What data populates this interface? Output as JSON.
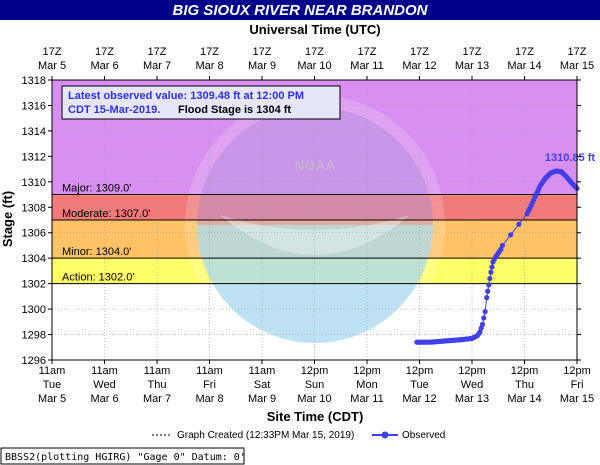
{
  "colors": {
    "title_bar": "#00008b",
    "observed": "#4040e6",
    "band_record": "#d98ff2",
    "band_major": "#c86ee0",
    "band_moderate": "#f27a7a",
    "band_minor": "#ffc266",
    "band_action": "#ffff66"
  },
  "chart_data": {
    "type": "line",
    "title": "BIG SIOUX RIVER NEAR BRANDON",
    "top_axis_title": "Universal Time (UTC)",
    "xlabel": "Site Time (CDT)",
    "ylabel": "Stage (ft)",
    "ylim": [
      1296,
      1318
    ],
    "y_ticks": [
      1296,
      1298,
      1300,
      1302,
      1304,
      1306,
      1308,
      1310,
      1312,
      1314,
      1316,
      1318
    ],
    "xlim_days": [
      0,
      10
    ],
    "x_ticks_bottom": [
      {
        "line1": "11am",
        "line2": "Tue",
        "line3": "Mar 5"
      },
      {
        "line1": "11am",
        "line2": "Wed",
        "line3": "Mar 6"
      },
      {
        "line1": "11am",
        "line2": "Thu",
        "line3": "Mar 7"
      },
      {
        "line1": "11am",
        "line2": "Fri",
        "line3": "Mar 8"
      },
      {
        "line1": "11am",
        "line2": "Sat",
        "line3": "Mar 9"
      },
      {
        "line1": "12pm",
        "line2": "Sun",
        "line3": "Mar 10"
      },
      {
        "line1": "12pm",
        "line2": "Mon",
        "line3": "Mar 11"
      },
      {
        "line1": "12pm",
        "line2": "Tue",
        "line3": "Mar 12"
      },
      {
        "line1": "12pm",
        "line2": "Wed",
        "line3": "Mar 13"
      },
      {
        "line1": "12pm",
        "line2": "Thu",
        "line3": "Mar 14"
      },
      {
        "line1": "12pm",
        "line2": "Fri",
        "line3": "Mar 15"
      }
    ],
    "x_ticks_top": [
      {
        "line1": "17Z",
        "line2": "Mar  5"
      },
      {
        "line1": "17Z",
        "line2": "Mar  6"
      },
      {
        "line1": "17Z",
        "line2": "Mar  7"
      },
      {
        "line1": "17Z",
        "line2": "Mar  8"
      },
      {
        "line1": "17Z",
        "line2": "Mar  9"
      },
      {
        "line1": "17Z",
        "line2": "Mar 10"
      },
      {
        "line1": "17Z",
        "line2": "Mar 11"
      },
      {
        "line1": "17Z",
        "line2": "Mar 12"
      },
      {
        "line1": "17Z",
        "line2": "Mar 13"
      },
      {
        "line1": "17Z",
        "line2": "Mar 14"
      },
      {
        "line1": "17Z",
        "line2": "Mar 15"
      }
    ],
    "thresholds": [
      {
        "name": "Major",
        "label": "Major: 1309.0'",
        "value": 1309.0
      },
      {
        "name": "Moderate",
        "label": "Moderate: 1307.0'",
        "value": 1307.0
      },
      {
        "name": "Minor",
        "label": "Minor: 1304.0'",
        "value": 1304.0
      },
      {
        "name": "Action",
        "label": "Action: 1302.0'",
        "value": 1302.0
      }
    ],
    "series": [
      {
        "name": "Observed",
        "x": [
          6.95,
          7.2,
          7.5,
          7.8,
          8.0,
          8.1,
          8.15,
          8.2,
          8.25,
          8.28,
          8.32,
          8.36,
          8.4,
          8.45,
          8.5,
          8.55,
          8.58,
          9.05,
          9.1,
          9.2,
          9.3,
          9.4,
          9.5,
          9.6,
          9.7,
          9.8,
          9.9,
          10.0
        ],
        "y": [
          1297.4,
          1297.4,
          1297.5,
          1297.6,
          1297.7,
          1297.9,
          1298.2,
          1298.8,
          1299.8,
          1300.9,
          1301.9,
          1302.9,
          1303.7,
          1304.1,
          1304.4,
          1304.7,
          1305.0,
          1307.5,
          1307.9,
          1308.8,
          1309.7,
          1310.3,
          1310.7,
          1310.85,
          1310.8,
          1310.4,
          1309.9,
          1309.48
        ]
      }
    ],
    "peak_label": "1310.85 ft",
    "peak": {
      "x": 9.6,
      "y": 1310.85
    },
    "annotation_line1": "Latest observed value: 1309.48 ft at 12:00 PM",
    "annotation_line2": "CDT 15-Mar-2019.",
    "annotation_flood": "Flood Stage is 1304 ft",
    "legend_graph_created": "Graph Created (12:33PM Mar 15, 2019)",
    "legend_observed": "Observed",
    "footer": "BBSS2(plotting HGIRG) \"Gage 0\" Datum:  0'",
    "watermark_logo": "NOAA",
    "watermark_ring": "NATIONAL OCEANIC AND ATMOSPHERIC ADMINISTRATION  U.S. DEPARTMENT OF COMMERCE",
    "grid": true
  }
}
